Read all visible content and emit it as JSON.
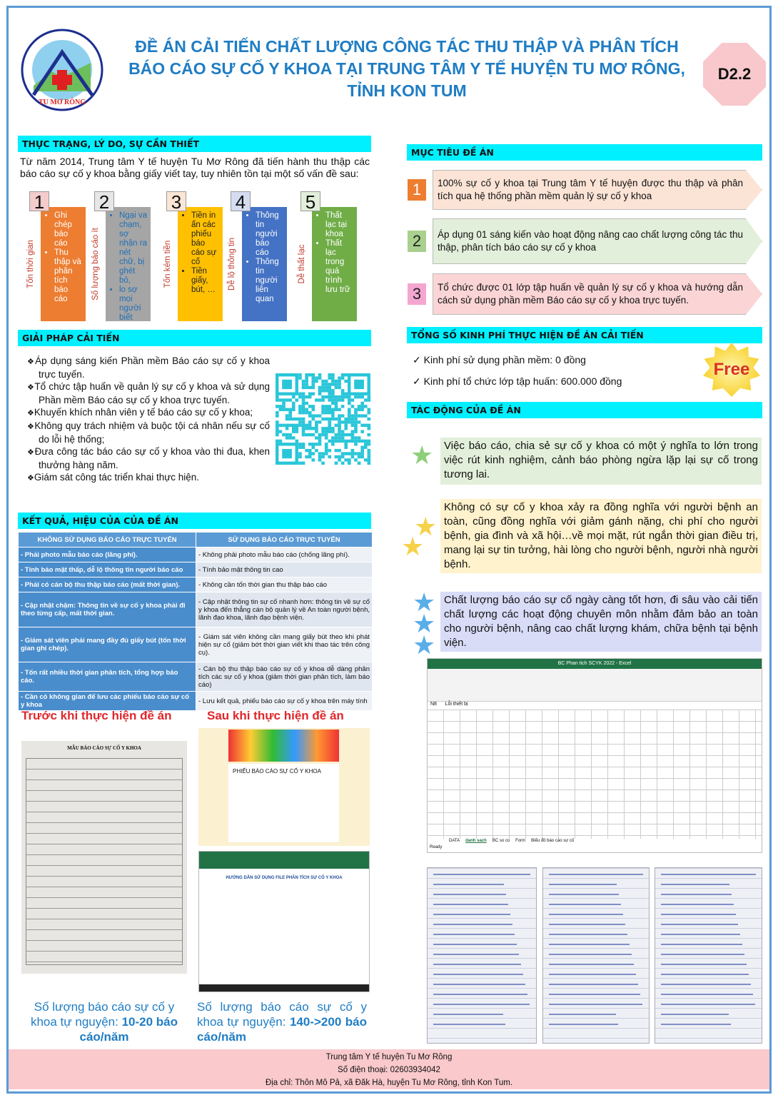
{
  "header": {
    "logo_text": "TRUNG TÂM Y TẾ HUYỆN TU MƠ RÔNG",
    "title": "ĐỀ ÁN CẢI TIẾN CHẤT LƯỢNG CÔNG TÁC THU THẬP VÀ PHÂN TÍCH BÁO CÁO SỰ CỐ Y KHOA TẠI TRUNG TÂM Y TẾ HUYỆN TU MƠ RÔNG, TỈNH KON TUM",
    "code": "D2.2"
  },
  "situation": {
    "heading": "THỰC TRẠNG, LÝ DO, SỰ CẦN THIẾT",
    "intro": "Từ năm 2014, Trung tâm Y tế huyện Tu Mơ Rông đã tiến hành thu thập các báo cáo sự cố y khoa bằng giấy viết tay, tuy nhiên tồn tại một số vấn đề sau:",
    "problems": [
      {
        "num": "1",
        "label": "Tốn thời gian",
        "color": "#ed7d31",
        "text_color": "#fff",
        "num_bg": "#f4cccc",
        "items": [
          "Ghi chép báo cáo",
          "Thu thập và phân tích báo cáo"
        ]
      },
      {
        "num": "2",
        "label": "Số lượng báo cáo ít",
        "color": "#a5a5a5",
        "text_color": "#1f6fb5",
        "num_bg": "#e7e6e6",
        "items": [
          "Ngại va chạm, sợ nhận ra nét chữ, bị ghét bỏ,",
          "lo sợ mọi người biết mình làm sai, vănhóa buộc tội và trừng"
        ]
      },
      {
        "num": "3",
        "label": "Tốn kém tiền",
        "color": "#ffc000",
        "text_color": "#222",
        "num_bg": "#fbe5d6",
        "items": [
          "Tiền in ấn các phiếu báo cáo sự cố",
          "Tiền giấy, bút, …"
        ]
      },
      {
        "num": "4",
        "label": "Dễ lộ thông tin",
        "color": "#4472c4",
        "text_color": "#fff",
        "num_bg": "#d6dcf0",
        "items": [
          "Thông tin người báo cáo",
          "Thông tin người liên quan"
        ]
      },
      {
        "num": "5",
        "label": "Dễ thất lạc",
        "color": "#70ad47",
        "text_color": "#fff",
        "num_bg": "#e2efda",
        "items": [
          "Thất lạc tại khoa",
          "Thất lạc trong quá trình lưu trữ"
        ]
      }
    ]
  },
  "solutions": {
    "heading": "GIẢI PHÁP CẢI TIẾN",
    "items": [
      "Áp dụng sáng kiến Phần mềm Báo cáo sự cố y khoa trực tuyến.",
      "Tổ chức tập huấn về quản lý sự cố y khoa và sử dụng Phần mềm Báo cáo sự cố y khoa trực tuyến.",
      "Khuyến khích nhân viên y tế báo cáo sự cố y khoa;",
      "Không quy trách nhiệm và buộc tội cá nhân nếu sự cố do lỗi hệ thống;",
      "Đưa công tác báo cáo sự cố y khoa vào thi đua, khen thưởng hàng năm.",
      "Giám sát công tác triển khai thực hiện."
    ],
    "qr_color": "#29c6d9"
  },
  "results": {
    "heading": "KẾT QUẢ, HIỆU CỦA CỦA ĐỀ ÁN",
    "columns": [
      "KHÔNG SỬ DỤNG BÁO CÁO TRỰC TUYẾN",
      "SỬ DỤNG BÁO CÁO TRỰC TUYẾN"
    ],
    "rows": [
      [
        "- Phải photo mẫu báo cáo (lãng phí).",
        "- Không phải photo mẫu báo cáo (chống lãng phí)."
      ],
      [
        "- Tính bảo mật thấp, dễ lộ thông tin người báo cáo",
        "- Tính bảo mật thông tin cao"
      ],
      [
        "- Phải có cán bộ thu thập báo cáo (mất thời gian).",
        "- Không cần tốn thời gian thu thập báo cáo"
      ],
      [
        "- Cập nhật chậm: Thông tin về sự cố y khoa phải đi theo từng cấp, mất thời gian.",
        "- Cập nhật thông tin sự cố nhanh hơn:  thông tin về sự cố y khoa đến thẳng cán bộ quản lý về An toàn người bệnh, lãnh đạo khoa, lãnh đạo bệnh viện."
      ],
      [
        "- Giám sát viên phải mang đầy đủ giấy bút (tốn thời gian ghi chép).",
        "- Giám sát viên không cần mang giấy bút theo khi phát hiện sự cố (giảm bớt thời gian viết khi thao tác trên công cụ)."
      ],
      [
        "- Tốn rất nhiều thời gian phân tích, tổng hợp báo cáo.",
        "- Cán bộ thu thập báo cáo sự cố y khoa dễ dàng phân tích các sự cố y khoa (giảm thời gian phân tích, làm báo cáo)"
      ],
      [
        "- Cần có không gian để lưu các phiếu báo cáo sự cố y khoa",
        "- Lưu kết quả, phiếu báo cáo sự cố y khoa trên máy tính"
      ]
    ]
  },
  "before": {
    "heading": "Trước khi thực hiện đề án",
    "form_title": "MẪU BÁO CÁO SỰ CỐ Y KHOA",
    "caption_prefix": "Số lượng báo cáo sự cố y khoa tự nguyện: ",
    "caption_value": "10-20 báo cáo/năm"
  },
  "after": {
    "heading": "Sau khi thực hiện đề án",
    "form_title": "PHIẾU BÁO CÁO SỰ CỐ Y KHOA",
    "doc_title": "HƯỚNG DẪN SỬ DỤNG FILE PHÂN TÍCH SỰ CỐ Y KHOA",
    "caption_prefix": "Số lượng báo cáo sự cố y khoa tự nguyện: ",
    "caption_value": "140->200 báo cáo/năm"
  },
  "goals": {
    "heading": "MỤC TIÊU ĐỀ ÁN",
    "items": [
      {
        "num": "1",
        "text": "100% sự cố y khoa tại Trung tâm Y tế huyện được thu thập và phân tích qua hệ thống phần mềm quản lý sự cố y khoa",
        "num_color": "#ed7d31",
        "bg": "#fbe4d6"
      },
      {
        "num": "2",
        "text": "Áp dụng 01 sáng kiến vào hoạt động nâng cao chất lượng công tác thu thập, phân tích báo cáo sự cố y khoa",
        "num_color": "#a9d08e",
        "bg": "#e2efda"
      },
      {
        "num": "3",
        "text": "Tổ chức được 01 lớp tập huấn về quản lý sự cố y khoa và hướng dẫn cách sử dụng phần mềm Báo cáo sự cố y khoa trực tuyến.",
        "num_color": "#f4a6d0",
        "bg": "#fbd5d5"
      }
    ]
  },
  "budget": {
    "heading": "TỔNG SỐ KINH PHÍ THỰC HIỆN ĐỀ ÁN CẢI TIẾN",
    "items": [
      "Kinh phí sử dụng phần mềm: 0 đồng",
      "Kinh phí tổ chức lớp tập huấn: 600.000 đồng"
    ],
    "badge": "Free"
  },
  "impact": {
    "heading": "TÁC ĐỘNG CỦA ĐỀ ÁN",
    "items": [
      {
        "text": "Việc báo cáo, chia sẻ sự cố y khoa có một ý nghĩa to lớn trong việc rút kinh nghiệm, cảnh báo phòng ngừa lặp lại sự cố trong tương lai.",
        "bg": "#e2efda",
        "star": "#8fcf7a"
      },
      {
        "text": "Không có sự cố y khoa xảy ra đồng nghĩa với người bệnh an toàn, cũng đồng nghĩa với giảm gánh nặng, chi phí cho người bệnh, gia đình và xã hội…về mọi mặt, rút ngắn thời gian điều trị, mang lại sự tin tưởng, hài lòng cho người bệnh, người nhà người bệnh.",
        "bg": "#fff2cc",
        "star": "#f6d24a"
      },
      {
        "text": "Chất lượng báo cáo sự cố ngày càng tốt hơn, đi sâu vào cải tiến chất lượng các hoạt động chuyên môn nhằm đảm bảo an toàn cho người bệnh, nâng cao chất lượng khám, chữa bệnh tại bệnh viện.",
        "bg": "#d9dcf7",
        "star": "#5aaee8"
      }
    ]
  },
  "excel": {
    "title": "BC Phan tich SCYK 2022 - Excel",
    "cell_ref": "N8",
    "formula": "Lỗi thiết bị",
    "sheet_tabs": [
      "DATA",
      "danh sach",
      "BC so co",
      "Form",
      "Biểu đồ báo cáo sự cố"
    ],
    "status": "Ready"
  },
  "footer": {
    "org": "Trung tâm Y tế huyện Tu Mơ Rông",
    "phone": "Số điện thoại: 02603934042",
    "address": "Địa chỉ: Thôn Mô Pả, xã Đăk Hà, huyện Tu Mơ Rông, tỉnh Kon Tum.",
    "bg": "#f9c9cc"
  }
}
